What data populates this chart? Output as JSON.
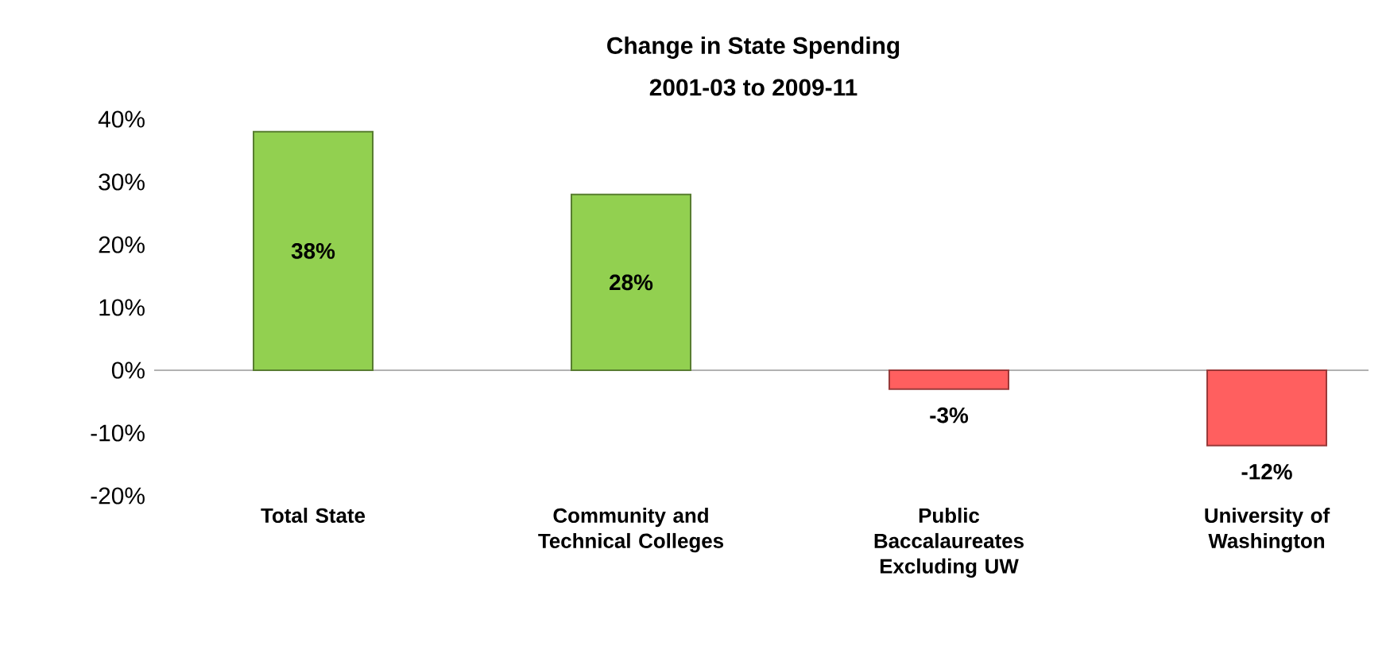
{
  "chart_data": {
    "type": "bar",
    "title": "Change in State Spending",
    "subtitle": "2001-03 to 2009-11",
    "categories": [
      "Total State",
      "Community and Technical Colleges",
      "Public Baccalaureates Excluding UW",
      "University of Washington"
    ],
    "values": [
      38,
      28,
      -3,
      -12
    ],
    "colors": [
      "#92d050",
      "#92d050",
      "#ff5f5f",
      "#ff5f5f"
    ],
    "value_labels": [
      "38%",
      "28%",
      "-3%",
      "-12%"
    ],
    "ylim": [
      -20,
      40
    ],
    "yticks": [
      {
        "value": -20,
        "label": "-20%"
      },
      {
        "value": -10,
        "label": "-10%"
      },
      {
        "value": 0,
        "label": "0%"
      },
      {
        "value": 10,
        "label": "10%"
      },
      {
        "value": 20,
        "label": "20%"
      },
      {
        "value": 30,
        "label": "30%"
      },
      {
        "value": 40,
        "label": "40%"
      }
    ]
  }
}
